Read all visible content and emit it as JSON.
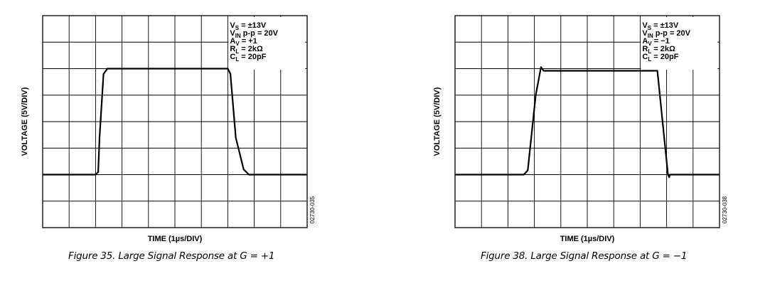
{
  "colors": {
    "trace": "#000000",
    "grid": "#000000",
    "frame": "#000000",
    "background": "#ffffff"
  },
  "chart_data": [
    {
      "type": "line",
      "title": "Figure 35. Large Signal Response at G = +1",
      "xlabel": "TIME (1µs/DIV)",
      "ylabel": "VOLTAGE (5V/DIV)",
      "code": "02730-035",
      "grid": true,
      "x_divisions": 10,
      "y_divisions": 8,
      "xlim": [
        0,
        10
      ],
      "ylim": [
        -20,
        20
      ],
      "conditions": [
        {
          "main": "V",
          "sub": "S",
          "rest": " = ±13V"
        },
        {
          "main": "V",
          "sub": "IN",
          "rest": " p-p = 20V"
        },
        {
          "main": "A",
          "sub": "V",
          "rest": " = +1"
        },
        {
          "main": "R",
          "sub": "L",
          "rest": " = 2kΩ"
        },
        {
          "main": "C",
          "sub": "L",
          "rest": " = 20pF"
        }
      ],
      "series": [
        {
          "x": [
            0,
            2.0,
            2.1,
            2.15,
            2.3,
            2.45,
            7.0,
            7.1,
            7.3,
            7.6,
            7.8,
            10
          ],
          "y": [
            -10,
            -10,
            -9.5,
            -3,
            9,
            10,
            10,
            9,
            -3,
            -9,
            -10,
            -10
          ]
        }
      ]
    },
    {
      "type": "line",
      "title": "Figure 38. Large Signal Response at G = −1",
      "xlabel": "TIME (1µs/DIV)",
      "ylabel": "VOLTAGE (5V/DIV)",
      "code": "02730-038",
      "grid": true,
      "x_divisions": 10,
      "y_divisions": 8,
      "xlim": [
        0,
        10
      ],
      "ylim": [
        -20,
        20
      ],
      "conditions": [
        {
          "main": "V",
          "sub": "S",
          "rest": " = ±13V"
        },
        {
          "main": "V",
          "sub": "IN",
          "rest": " p-p = 20V"
        },
        {
          "main": "A",
          "sub": "V",
          "rest": " = −1"
        },
        {
          "main": "R",
          "sub": "L",
          "rest": " = 2kΩ"
        },
        {
          "main": "C",
          "sub": "L",
          "rest": " = 20pF"
        }
      ],
      "series": [
        {
          "x": [
            0,
            2.6,
            2.75,
            3.05,
            3.25,
            3.35,
            7.65,
            8.05,
            8.1,
            8.12,
            8.2,
            10
          ],
          "y": [
            -10,
            -10,
            -9.2,
            5,
            10.3,
            9.6,
            9.6,
            -10,
            -10.5,
            -10,
            -10,
            -10
          ]
        }
      ]
    }
  ]
}
